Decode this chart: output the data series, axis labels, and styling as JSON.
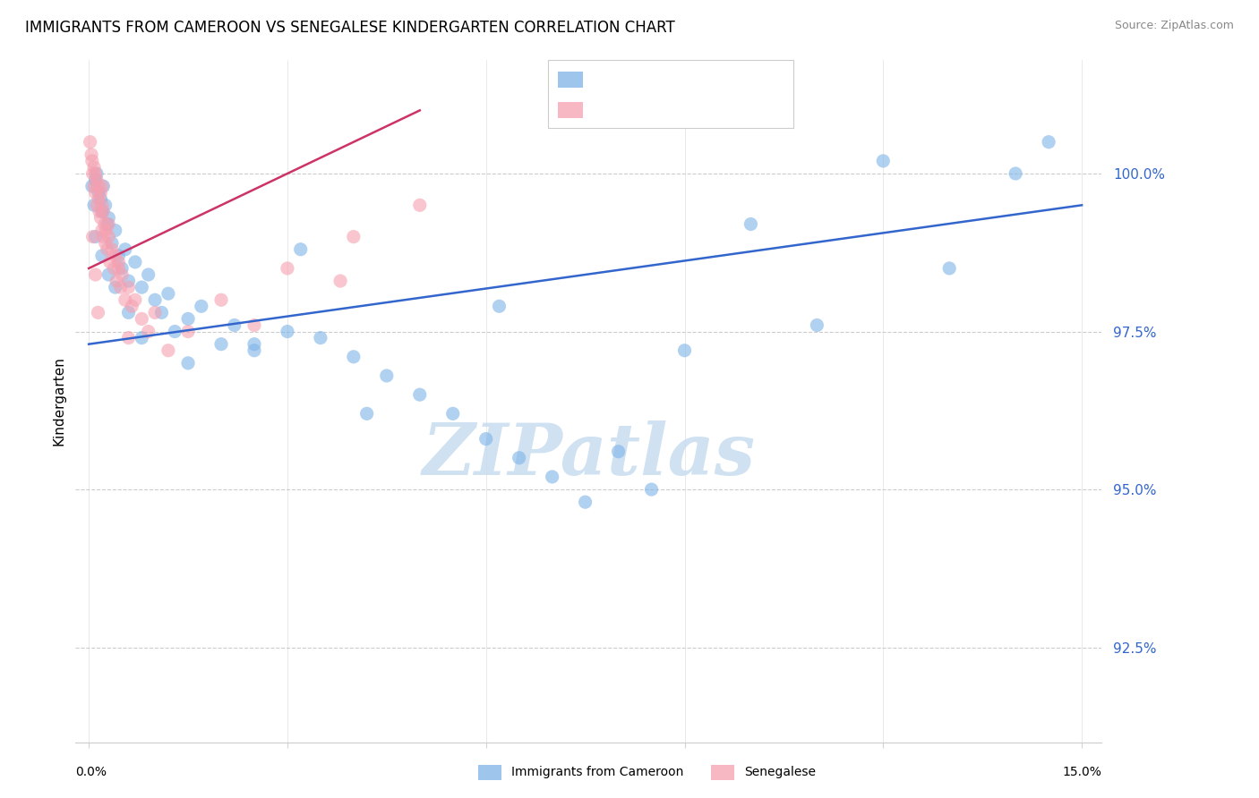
{
  "title": "IMMIGRANTS FROM CAMEROON VS SENEGALESE KINDERGARTEN CORRELATION CHART",
  "source": "Source: ZipAtlas.com",
  "ylabel": "Kindergarten",
  "watermark": "ZIPatlas",
  "blue_color": "#7EB3E8",
  "pink_color": "#F5A0B0",
  "blue_line_color": "#3366CC",
  "pink_line_color": "#CC3366",
  "x_min": 0.0,
  "x_max": 15.0,
  "y_min": 91.0,
  "y_max": 101.8,
  "yticks": [
    92.5,
    95.0,
    97.5,
    100.0
  ],
  "ytick_labels": [
    "92.5%",
    "95.0%",
    "97.5%",
    "100.0%"
  ],
  "blue_x": [
    0.05,
    0.08,
    0.1,
    0.12,
    0.15,
    0.18,
    0.2,
    0.22,
    0.25,
    0.28,
    0.3,
    0.35,
    0.4,
    0.45,
    0.5,
    0.55,
    0.6,
    0.7,
    0.8,
    0.9,
    1.0,
    1.1,
    1.2,
    1.3,
    1.5,
    1.7,
    2.0,
    2.2,
    2.5,
    3.0,
    3.5,
    4.0,
    4.5,
    5.0,
    5.5,
    6.0,
    6.5,
    7.0,
    7.5,
    8.0,
    9.0,
    10.0,
    11.0,
    12.0,
    13.0,
    14.0,
    14.5,
    0.1,
    0.2,
    0.3,
    0.4,
    0.6,
    0.8,
    1.5,
    2.5,
    3.2,
    4.2,
    6.2,
    8.5
  ],
  "blue_y": [
    99.8,
    99.5,
    99.9,
    100.0,
    99.7,
    99.6,
    99.4,
    99.8,
    99.5,
    99.2,
    99.3,
    98.9,
    99.1,
    98.7,
    98.5,
    98.8,
    98.3,
    98.6,
    98.2,
    98.4,
    98.0,
    97.8,
    98.1,
    97.5,
    97.7,
    97.9,
    97.3,
    97.6,
    97.2,
    97.5,
    97.4,
    97.1,
    96.8,
    96.5,
    96.2,
    95.8,
    95.5,
    95.2,
    94.8,
    95.6,
    97.2,
    99.2,
    97.6,
    100.2,
    98.5,
    100.0,
    100.5,
    99.0,
    98.7,
    98.4,
    98.2,
    97.8,
    97.4,
    97.0,
    97.3,
    98.8,
    96.2,
    97.9,
    95.0
  ],
  "pink_x": [
    0.02,
    0.04,
    0.05,
    0.06,
    0.08,
    0.08,
    0.1,
    0.1,
    0.12,
    0.12,
    0.14,
    0.15,
    0.16,
    0.18,
    0.18,
    0.2,
    0.2,
    0.22,
    0.22,
    0.24,
    0.25,
    0.26,
    0.28,
    0.3,
    0.32,
    0.35,
    0.38,
    0.4,
    0.42,
    0.45,
    0.48,
    0.5,
    0.55,
    0.6,
    0.65,
    0.7,
    0.8,
    0.9,
    1.0,
    1.2,
    1.5,
    2.0,
    2.5,
    3.0,
    3.8,
    4.0,
    5.0,
    0.06,
    0.1,
    0.14,
    0.2,
    0.3,
    0.45,
    0.6
  ],
  "pink_y": [
    100.5,
    100.3,
    100.2,
    100.0,
    100.1,
    99.8,
    100.0,
    99.7,
    99.9,
    99.5,
    99.8,
    99.6,
    99.4,
    99.7,
    99.3,
    99.5,
    99.1,
    99.4,
    99.0,
    99.2,
    98.9,
    99.1,
    98.8,
    99.0,
    98.6,
    98.8,
    98.5,
    98.7,
    98.3,
    98.5,
    98.2,
    98.4,
    98.0,
    98.2,
    97.9,
    98.0,
    97.7,
    97.5,
    97.8,
    97.2,
    97.5,
    98.0,
    97.6,
    98.5,
    98.3,
    99.0,
    99.5,
    99.0,
    98.4,
    97.8,
    99.8,
    99.2,
    98.6,
    97.4
  ],
  "blue_line_x0": 0.0,
  "blue_line_x1": 15.0,
  "blue_line_y0": 97.3,
  "blue_line_y1": 99.5,
  "pink_line_x0": 0.0,
  "pink_line_x1": 5.0,
  "pink_line_y0": 98.5,
  "pink_line_y1": 101.0
}
